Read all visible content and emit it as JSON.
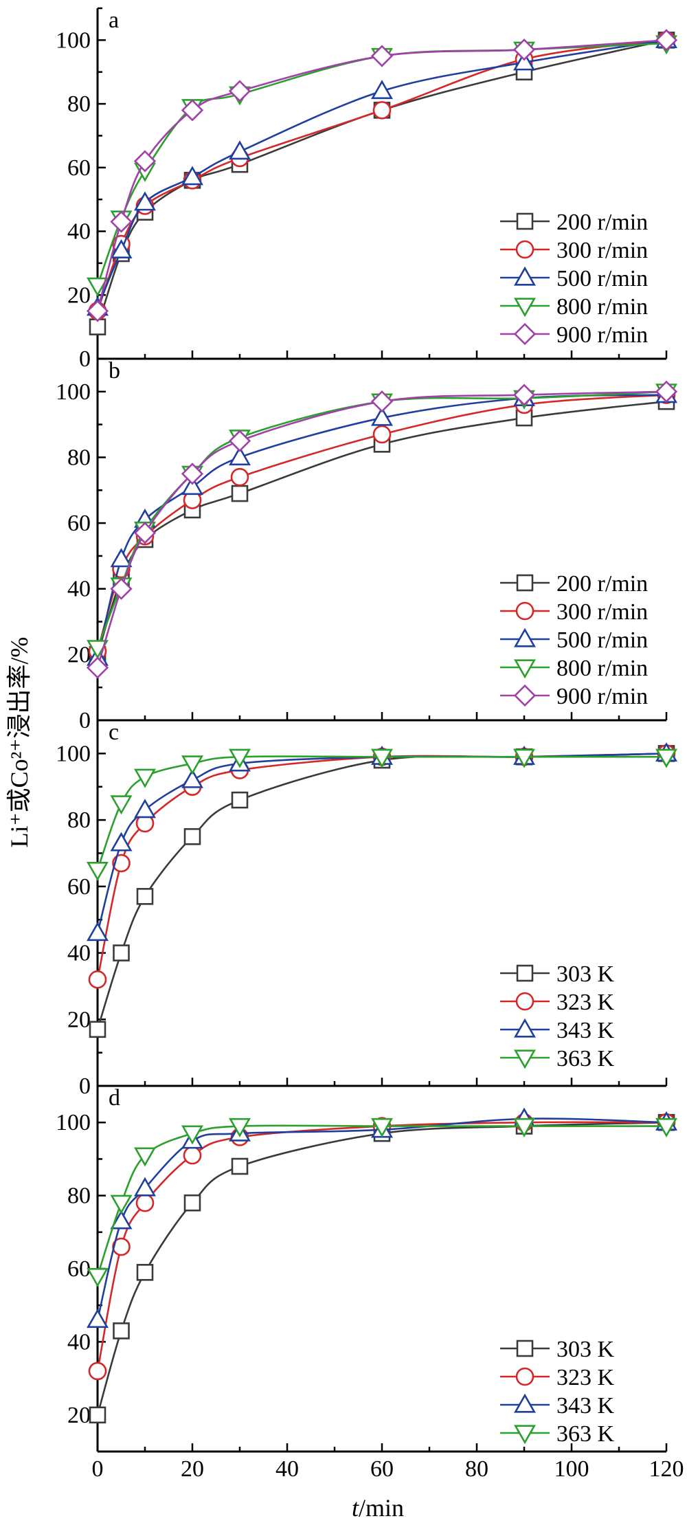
{
  "figure": {
    "ylabel": "Li⁺或Co²⁺浸出率/%",
    "xlabel_italic": "t",
    "xlabel_rest": "/min"
  },
  "chart_data": [
    {
      "type": "line",
      "panel_label": "a",
      "xlim": [
        0,
        120
      ],
      "ylim": [
        0,
        110
      ],
      "x_ticks": [
        0,
        20,
        40,
        60,
        80,
        100,
        120
      ],
      "y_ticks": [
        0,
        20,
        40,
        60,
        80,
        100
      ],
      "legend_position": "right",
      "series": [
        {
          "name": "200 r/min",
          "color": "#3a3a3a",
          "marker": "square",
          "x": [
            0,
            5,
            10,
            20,
            30,
            60,
            90,
            120
          ],
          "y": [
            10,
            33,
            46,
            56,
            61,
            78,
            90,
            100
          ]
        },
        {
          "name": "300 r/min",
          "color": "#d62728",
          "marker": "circle",
          "x": [
            0,
            5,
            10,
            20,
            30,
            60,
            90,
            120
          ],
          "y": [
            15,
            36,
            48,
            56,
            63,
            78,
            94,
            100
          ]
        },
        {
          "name": "500 r/min",
          "color": "#1f3f9f",
          "marker": "triangle-up",
          "x": [
            0,
            5,
            10,
            20,
            30,
            60,
            90,
            120
          ],
          "y": [
            16,
            34,
            49,
            57,
            65,
            84,
            93,
            100
          ]
        },
        {
          "name": "800 r/min",
          "color": "#2ca02c",
          "marker": "triangle-down",
          "x": [
            0,
            5,
            10,
            20,
            30,
            60,
            90,
            120
          ],
          "y": [
            23,
            44,
            59,
            79,
            83,
            95,
            97,
            99
          ]
        },
        {
          "name": "900 r/min",
          "color": "#a040a8",
          "marker": "diamond",
          "x": [
            0,
            5,
            10,
            20,
            30,
            60,
            90,
            120
          ],
          "y": [
            15,
            43,
            62,
            78,
            84,
            95,
            97,
            100
          ]
        }
      ]
    },
    {
      "type": "line",
      "panel_label": "b",
      "xlim": [
        0,
        120
      ],
      "ylim": [
        0,
        110
      ],
      "x_ticks": [
        0,
        20,
        40,
        60,
        80,
        100,
        120
      ],
      "y_ticks": [
        0,
        20,
        40,
        60,
        80,
        100
      ],
      "legend_position": "right",
      "series": [
        {
          "name": "200 r/min",
          "color": "#3a3a3a",
          "marker": "square",
          "x": [
            0,
            5,
            10,
            20,
            30,
            60,
            90,
            120
          ],
          "y": [
            20,
            43,
            55,
            64,
            69,
            84,
            92,
            97
          ]
        },
        {
          "name": "300 r/min",
          "color": "#d62728",
          "marker": "circle",
          "x": [
            0,
            5,
            10,
            20,
            30,
            60,
            90,
            120
          ],
          "y": [
            21,
            46,
            56,
            67,
            74,
            87,
            96,
            99
          ]
        },
        {
          "name": "500 r/min",
          "color": "#1f3f9f",
          "marker": "triangle-up",
          "x": [
            0,
            5,
            10,
            20,
            30,
            60,
            90,
            120
          ],
          "y": [
            19,
            49,
            61,
            71,
            80,
            92,
            98,
            99
          ]
        },
        {
          "name": "800 r/min",
          "color": "#2ca02c",
          "marker": "triangle-down",
          "x": [
            0,
            5,
            10,
            20,
            30,
            60,
            90,
            120
          ],
          "y": [
            22,
            41,
            58,
            75,
            86,
            97,
            98,
            100
          ]
        },
        {
          "name": "900 r/min",
          "color": "#a040a8",
          "marker": "diamond",
          "x": [
            0,
            5,
            10,
            20,
            30,
            60,
            90,
            120
          ],
          "y": [
            16,
            40,
            57,
            75,
            85,
            97,
            99,
            100
          ]
        }
      ]
    },
    {
      "type": "line",
      "panel_label": "c",
      "xlim": [
        0,
        120
      ],
      "ylim": [
        0,
        110
      ],
      "x_ticks": [
        0,
        20,
        40,
        60,
        80,
        100,
        120
      ],
      "y_ticks": [
        0,
        20,
        40,
        60,
        80,
        100
      ],
      "legend_position": "right",
      "series": [
        {
          "name": "303 K",
          "color": "#3a3a3a",
          "marker": "square",
          "x": [
            0,
            5,
            10,
            20,
            30,
            60,
            90,
            120
          ],
          "y": [
            17,
            40,
            57,
            75,
            86,
            98,
            99,
            100
          ]
        },
        {
          "name": "323 K",
          "color": "#d62728",
          "marker": "circle",
          "x": [
            0,
            5,
            10,
            20,
            30,
            60,
            90,
            120
          ],
          "y": [
            32,
            67,
            79,
            90,
            95,
            99,
            99,
            100
          ]
        },
        {
          "name": "343 K",
          "color": "#1f3f9f",
          "marker": "triangle-up",
          "x": [
            0,
            5,
            10,
            20,
            30,
            60,
            90,
            120
          ],
          "y": [
            46,
            73,
            83,
            92,
            97,
            99,
            99,
            100
          ]
        },
        {
          "name": "363 K",
          "color": "#2ca02c",
          "marker": "triangle-down",
          "x": [
            0,
            5,
            10,
            20,
            30,
            60,
            90,
            120
          ],
          "y": [
            65,
            85,
            93,
            97,
            99,
            99,
            99,
            99
          ]
        }
      ]
    },
    {
      "type": "line",
      "panel_label": "d",
      "xlim": [
        0,
        120
      ],
      "ylim": [
        10,
        110
      ],
      "x_ticks": [
        0,
        20,
        40,
        60,
        80,
        100,
        120
      ],
      "y_ticks": [
        20,
        40,
        60,
        80,
        100
      ],
      "legend_position": "right",
      "series": [
        {
          "name": "303 K",
          "color": "#3a3a3a",
          "marker": "square",
          "x": [
            0,
            5,
            10,
            20,
            30,
            60,
            90,
            120
          ],
          "y": [
            20,
            43,
            59,
            78,
            88,
            97,
            99,
            100
          ]
        },
        {
          "name": "323 K",
          "color": "#d62728",
          "marker": "circle",
          "x": [
            0,
            5,
            10,
            20,
            30,
            60,
            90,
            120
          ],
          "y": [
            32,
            66,
            78,
            91,
            96,
            99,
            100,
            100
          ]
        },
        {
          "name": "343 K",
          "color": "#1f3f9f",
          "marker": "triangle-up",
          "x": [
            0,
            5,
            10,
            20,
            30,
            60,
            90,
            120
          ],
          "y": [
            46,
            73,
            82,
            95,
            97,
            98,
            101,
            100
          ]
        },
        {
          "name": "363 K",
          "color": "#2ca02c",
          "marker": "triangle-down",
          "x": [
            0,
            5,
            10,
            20,
            30,
            60,
            90,
            120
          ],
          "y": [
            58,
            78,
            91,
            97,
            99,
            99,
            99,
            99
          ]
        }
      ]
    }
  ]
}
